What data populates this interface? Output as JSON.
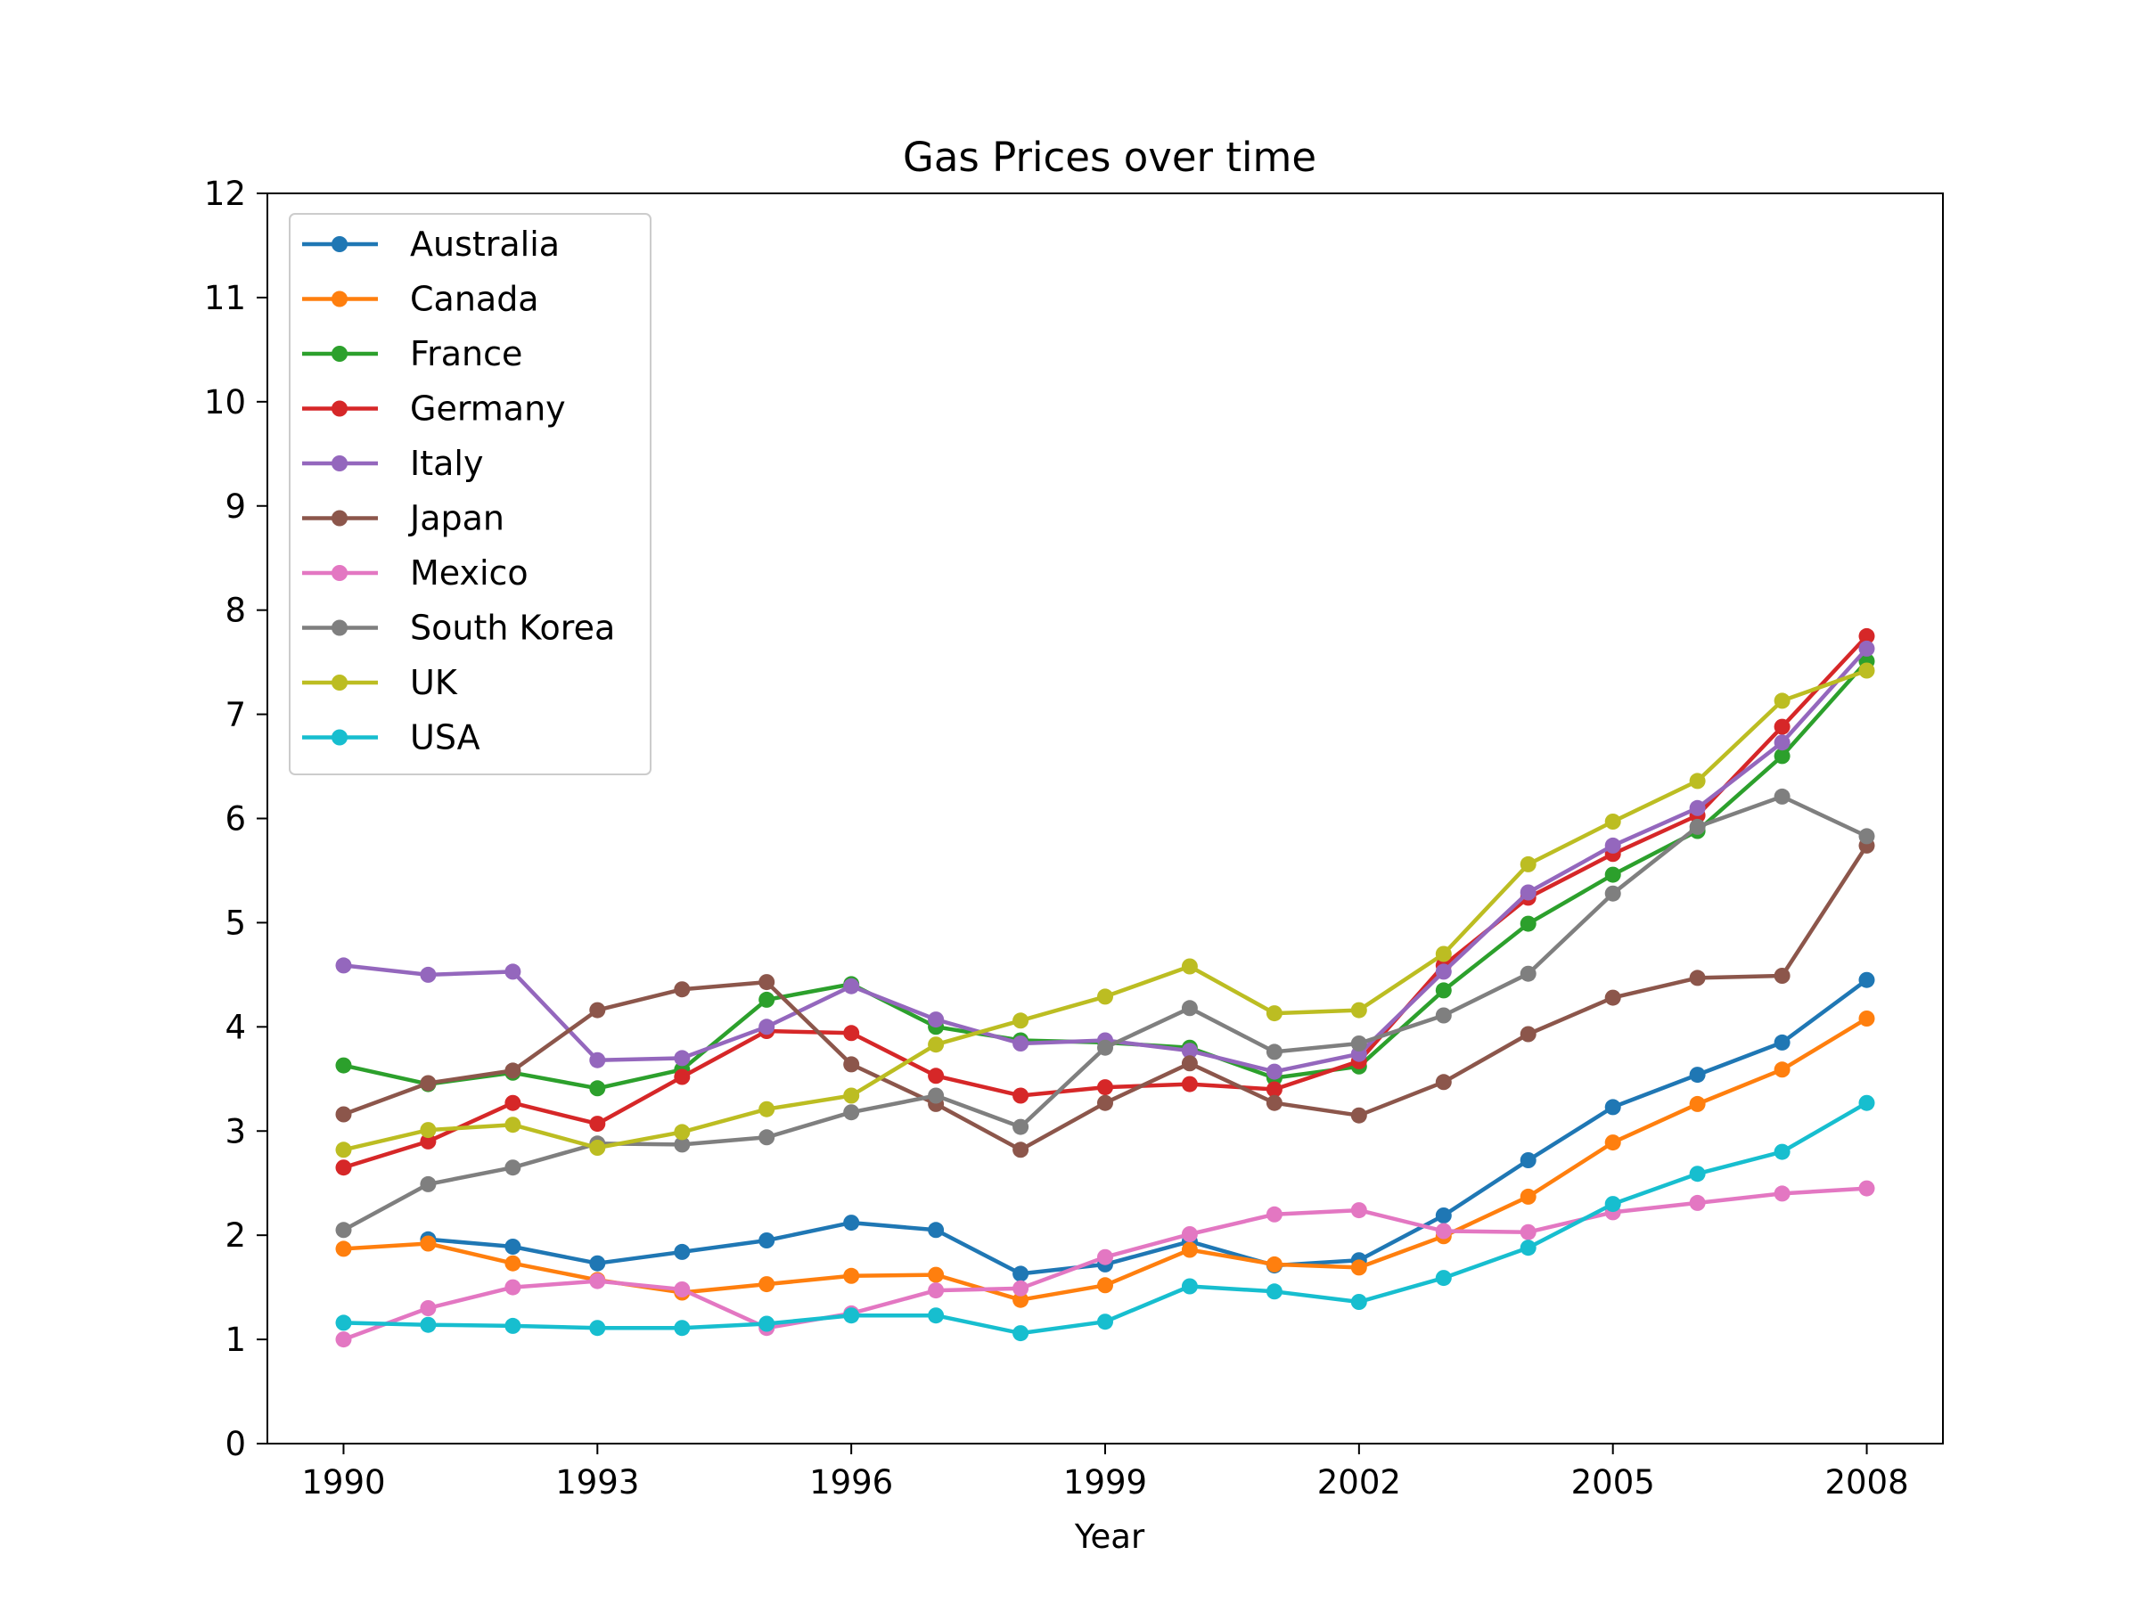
{
  "chart_data": {
    "type": "line",
    "title": "Gas Prices over time",
    "xlabel": "Year",
    "ylabel": "",
    "xlim": [
      1989.1,
      2008.9
    ],
    "ylim": [
      0,
      12
    ],
    "xticks": [
      1990,
      1993,
      1996,
      1999,
      2002,
      2005,
      2008
    ],
    "xtick_labels": [
      "1990",
      "1993",
      "1996",
      "1999",
      "2002",
      "2005",
      "2008"
    ],
    "yticks": [
      0,
      1,
      2,
      3,
      4,
      5,
      6,
      7,
      8,
      9,
      10,
      11,
      12
    ],
    "ytick_labels": [
      "0",
      "1",
      "2",
      "3",
      "4",
      "5",
      "6",
      "7",
      "8",
      "9",
      "10",
      "11",
      "12"
    ],
    "grid": false,
    "legend_position": "top-left",
    "x": [
      1990,
      1991,
      1992,
      1993,
      1994,
      1995,
      1996,
      1997,
      1998,
      1999,
      2000,
      2001,
      2002,
      2003,
      2004,
      2005,
      2006,
      2007,
      2008
    ],
    "series": [
      {
        "name": "Australia",
        "color": "#1f77b4",
        "values": [
          null,
          1.96,
          1.89,
          1.73,
          1.84,
          1.95,
          2.12,
          2.05,
          1.63,
          1.72,
          1.94,
          1.71,
          1.76,
          2.19,
          2.72,
          3.23,
          3.54,
          3.85,
          4.45
        ]
      },
      {
        "name": "Canada",
        "color": "#ff7f0e",
        "values": [
          1.87,
          1.92,
          1.73,
          1.57,
          1.45,
          1.53,
          1.61,
          1.62,
          1.38,
          1.52,
          1.86,
          1.72,
          1.69,
          1.99,
          2.37,
          2.89,
          3.26,
          3.59,
          4.08
        ]
      },
      {
        "name": "France",
        "color": "#2ca02c",
        "values": [
          3.63,
          3.45,
          3.56,
          3.41,
          3.59,
          4.26,
          4.41,
          4.0,
          3.87,
          3.85,
          3.8,
          3.51,
          3.62,
          4.35,
          4.99,
          5.46,
          5.88,
          6.6,
          7.51
        ]
      },
      {
        "name": "Germany",
        "color": "#d62728",
        "values": [
          2.65,
          2.9,
          3.27,
          3.07,
          3.52,
          3.96,
          3.94,
          3.53,
          3.34,
          3.42,
          3.45,
          3.4,
          3.67,
          4.59,
          5.24,
          5.66,
          6.03,
          6.88,
          7.75
        ]
      },
      {
        "name": "Italy",
        "color": "#9467bd",
        "values": [
          4.59,
          4.5,
          4.53,
          3.68,
          3.7,
          4.0,
          4.39,
          4.07,
          3.84,
          3.87,
          3.77,
          3.57,
          3.74,
          4.53,
          5.29,
          5.74,
          6.1,
          6.73,
          7.63
        ]
      },
      {
        "name": "Japan",
        "color": "#8c564b",
        "values": [
          3.16,
          3.46,
          3.58,
          4.16,
          4.36,
          4.43,
          3.64,
          3.26,
          2.82,
          3.27,
          3.65,
          3.27,
          3.15,
          3.47,
          3.93,
          4.28,
          4.47,
          4.49,
          5.74
        ]
      },
      {
        "name": "Mexico",
        "color": "#e377c2",
        "values": [
          1.0,
          1.3,
          1.5,
          1.56,
          1.48,
          1.11,
          1.25,
          1.47,
          1.49,
          1.79,
          2.01,
          2.2,
          2.24,
          2.04,
          2.03,
          2.22,
          2.31,
          2.4,
          2.45
        ]
      },
      {
        "name": "South Korea",
        "color": "#7f7f7f",
        "values": [
          2.05,
          2.49,
          2.65,
          2.88,
          2.87,
          2.94,
          3.18,
          3.34,
          3.04,
          3.8,
          4.18,
          3.76,
          3.84,
          4.11,
          4.51,
          5.28,
          5.92,
          6.21,
          5.83
        ]
      },
      {
        "name": "UK",
        "color": "#bcbd22",
        "values": [
          2.82,
          3.01,
          3.06,
          2.84,
          2.99,
          3.21,
          3.34,
          3.83,
          4.06,
          4.29,
          4.58,
          4.13,
          4.16,
          4.7,
          5.56,
          5.97,
          6.36,
          7.13,
          7.42
        ]
      },
      {
        "name": "USA",
        "color": "#17becf",
        "values": [
          1.16,
          1.14,
          1.13,
          1.11,
          1.11,
          1.15,
          1.23,
          1.23,
          1.06,
          1.17,
          1.51,
          1.46,
          1.36,
          1.59,
          1.88,
          2.3,
          2.59,
          2.8,
          3.27
        ]
      }
    ]
  }
}
